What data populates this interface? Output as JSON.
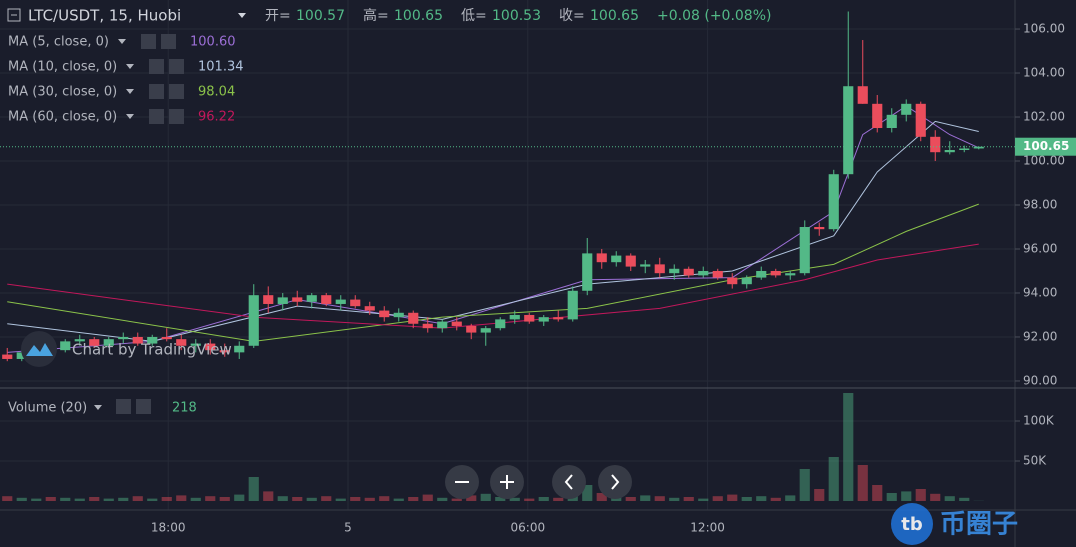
{
  "chart_data": {
    "type": "candlestick",
    "header": {
      "symbol": "LTC/USDT, 15, Huobi",
      "ohlc": [
        {
          "label": "开=",
          "value": 100.57
        },
        {
          "label": "高=",
          "value": 100.65
        },
        {
          "label": "低=",
          "value": 100.53
        },
        {
          "label": "收=",
          "value": 100.65
        }
      ],
      "change": "+0.08 (+0.08%)"
    },
    "indicators": [
      {
        "name": "MA (5, close, 0)",
        "value": "100.60",
        "color": "#9c6fd6",
        "x": [
          0,
          10,
          20,
          30,
          40,
          50,
          57,
          59,
          62,
          65,
          67
        ],
        "values": [
          91.3,
          91.8,
          93.7,
          92.6,
          94.6,
          94.7,
          97.7,
          101.2,
          102.5,
          101.2,
          100.6
        ]
      },
      {
        "name": "MA (10, close, 0)",
        "value": "101.34",
        "color": "#b0c4de",
        "x": [
          0,
          10,
          20,
          30,
          40,
          50,
          57,
          60,
          64,
          67
        ],
        "values": [
          92.6,
          91.8,
          93.4,
          92.8,
          94.4,
          95.0,
          96.6,
          99.5,
          101.8,
          101.34
        ]
      },
      {
        "name": "MA (30, close, 0)",
        "value": "98.04",
        "color": "#8bc34a",
        "x": [
          0,
          17,
          30,
          40,
          50,
          57,
          62,
          67
        ],
        "values": [
          93.6,
          91.8,
          92.9,
          93.3,
          94.6,
          95.3,
          96.8,
          98.04
        ]
      },
      {
        "name": "MA (60, close, 0)",
        "value": "96.22",
        "color": "#c2185b",
        "x": [
          0,
          17,
          30,
          45,
          55,
          60,
          67
        ],
        "values": [
          94.4,
          92.9,
          92.4,
          93.3,
          94.6,
          95.5,
          96.22
        ]
      }
    ],
    "open": [
      91.2,
      91.0,
      91.3,
      91.5,
      91.4,
      91.8,
      91.9,
      91.6,
      91.9,
      92.0,
      91.7,
      92.0,
      91.9,
      91.6,
      91.7,
      91.4,
      91.3,
      91.6,
      93.9,
      93.5,
      93.8,
      93.6,
      93.9,
      93.5,
      93.7,
      93.4,
      93.2,
      92.9,
      93.1,
      92.6,
      92.4,
      92.7,
      92.5,
      92.2,
      92.4,
      92.8,
      93.0,
      92.7,
      92.9,
      92.8,
      94.1,
      95.8,
      95.4,
      95.7,
      95.2,
      95.3,
      94.9,
      95.1,
      94.8,
      95.0,
      94.7,
      94.4,
      94.7,
      95.0,
      94.8,
      94.9,
      97.0,
      96.9,
      99.4,
      103.4,
      102.6,
      101.5,
      102.1,
      102.6,
      101.1,
      100.4,
      100.5,
      100.57
    ],
    "high": [
      91.5,
      91.4,
      91.6,
      91.7,
      91.9,
      92.1,
      92.0,
      92.0,
      92.2,
      92.2,
      92.1,
      92.4,
      92.1,
      91.9,
      91.9,
      91.7,
      91.8,
      94.4,
      94.3,
      94.0,
      94.1,
      94.0,
      94.0,
      93.9,
      93.9,
      93.6,
      93.4,
      93.3,
      93.2,
      92.9,
      92.8,
      92.9,
      92.6,
      92.5,
      92.9,
      93.2,
      93.1,
      93.0,
      93.2,
      94.3,
      96.5,
      96.0,
      95.9,
      95.8,
      95.5,
      95.6,
      95.3,
      95.2,
      95.2,
      95.1,
      94.9,
      94.8,
      95.2,
      95.1,
      95.0,
      97.3,
      97.2,
      99.6,
      106.8,
      105.5,
      103.0,
      102.4,
      102.8,
      102.7,
      101.4,
      100.9,
      100.7,
      100.65
    ],
    "low": [
      90.9,
      90.9,
      91.1,
      91.3,
      91.3,
      91.6,
      91.5,
      91.5,
      91.7,
      91.6,
      91.6,
      91.8,
      91.4,
      91.3,
      91.2,
      91.1,
      91.0,
      91.5,
      93.1,
      93.2,
      93.4,
      93.3,
      93.4,
      93.2,
      93.3,
      93.0,
      92.7,
      92.7,
      92.4,
      92.2,
      92.2,
      92.3,
      91.9,
      91.6,
      92.3,
      92.6,
      92.6,
      92.5,
      92.7,
      92.7,
      93.9,
      95.1,
      95.2,
      95.0,
      94.9,
      94.7,
      94.6,
      94.7,
      94.7,
      94.6,
      94.2,
      94.2,
      94.6,
      94.7,
      94.6,
      94.8,
      96.6,
      96.8,
      99.2,
      102.6,
      101.3,
      101.3,
      101.8,
      100.9,
      100.0,
      100.3,
      100.4,
      100.53
    ],
    "close": [
      91.0,
      91.3,
      91.5,
      91.4,
      91.8,
      91.9,
      91.6,
      91.9,
      92.0,
      91.7,
      92.0,
      91.9,
      91.6,
      91.7,
      91.4,
      91.3,
      91.6,
      93.9,
      93.5,
      93.8,
      93.6,
      93.9,
      93.5,
      93.7,
      93.4,
      93.2,
      92.9,
      93.1,
      92.6,
      92.4,
      92.7,
      92.5,
      92.2,
      92.4,
      92.8,
      93.0,
      92.7,
      92.9,
      92.8,
      94.1,
      95.8,
      95.4,
      95.7,
      95.2,
      95.3,
      94.9,
      95.1,
      94.8,
      95.0,
      94.7,
      94.4,
      94.7,
      95.0,
      94.8,
      94.9,
      97.0,
      96.9,
      99.4,
      103.4,
      102.6,
      101.5,
      102.1,
      102.6,
      101.1,
      100.4,
      100.5,
      100.57,
      100.65
    ],
    "volume": [
      6000,
      4000,
      3000,
      5000,
      4000,
      3000,
      5000,
      3000,
      4000,
      6000,
      3000,
      5000,
      7000,
      4000,
      6000,
      5000,
      8000,
      30000,
      12000,
      6000,
      5000,
      4000,
      6000,
      3000,
      5000,
      4000,
      6000,
      3000,
      5000,
      8000,
      4000,
      3000,
      7000,
      9000,
      5000,
      4000,
      3000,
      5000,
      4000,
      14000,
      20000,
      10000,
      6000,
      5000,
      7000,
      6000,
      4000,
      5000,
      3000,
      6000,
      8000,
      5000,
      6000,
      4000,
      7000,
      40000,
      15000,
      55000,
      135000,
      45000,
      20000,
      10000,
      12000,
      15000,
      9000,
      6000,
      4000,
      218
    ],
    "up_color": "#53b987",
    "down_color": "#eb4d5c",
    "xlim": [
      -0.5,
      69.5
    ],
    "xticks": [
      {
        "value": 11.1,
        "label": "18:00"
      },
      {
        "value": 23.5,
        "label": "5"
      },
      {
        "value": 35.9,
        "label": "06:00"
      },
      {
        "value": 48.3,
        "label": "12:00"
      }
    ],
    "ylim": [
      89.68,
      107.32
    ],
    "yticks": [
      {
        "value": 90,
        "label": "90.00"
      },
      {
        "value": 92,
        "label": "92.00"
      },
      {
        "value": 94,
        "label": "94.00"
      },
      {
        "value": 96,
        "label": "96.00"
      },
      {
        "value": 98,
        "label": "98.00"
      },
      {
        "value": 100,
        "label": "100.00"
      },
      {
        "value": 102,
        "label": "102.00"
      },
      {
        "value": 104,
        "label": "104.00"
      },
      {
        "value": 106,
        "label": "106.00"
      }
    ],
    "last_price": {
      "value": 100.65,
      "label": "100.65"
    },
    "volume_indicator": {
      "name": "Volume (20)",
      "value": "218"
    },
    "volume_ylim": [
      -11250,
      141250
    ],
    "volume_yticks": [
      {
        "value": 50000,
        "label": "50K"
      },
      {
        "value": 100000,
        "label": "100K"
      }
    ],
    "grid": true,
    "watermark": "Chart by TradingView",
    "site_logo": "tb",
    "site_name": "币圈子"
  }
}
